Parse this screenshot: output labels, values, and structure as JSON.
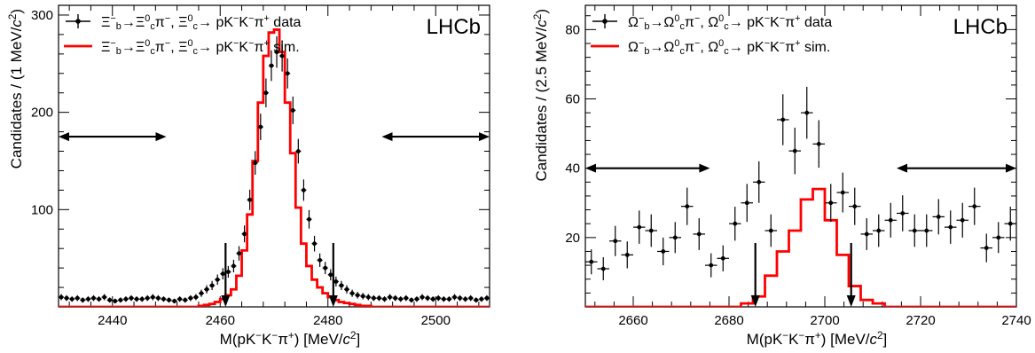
{
  "chart_data": [
    {
      "type": "histogram",
      "experiment_label": "LHCb",
      "xlabel": "M(pK⁻K⁻π⁺) [MeV/c²]",
      "ylabel": "Candidates / (1 MeV/c²)",
      "xlim": [
        2430,
        2510
      ],
      "ylim": [
        0,
        310
      ],
      "xticks": [
        2440,
        2460,
        2480,
        2500
      ],
      "yticks": [
        100,
        200,
        300
      ],
      "grid": false,
      "legend_position": "top-left",
      "legend": [
        {
          "series": "data",
          "text": "Ξ⁻_b→Ξ⁰_cπ⁻, Ξ⁰_c→ pK⁻K⁻π⁺ data"
        },
        {
          "series": "sim",
          "text": "Ξ⁻_b→Ξ⁰_cπ⁻, Ξ⁰_c→ pK⁻K⁻π⁺ sim."
        }
      ],
      "signal_window_arrows": [
        2461,
        2481
      ],
      "sideband_arrows": [
        [
          2430,
          2450
        ],
        [
          2490,
          2510
        ]
      ],
      "sideband_arrow_y": 175,
      "series": [
        {
          "name": "data",
          "color": "#000000",
          "style": "points_with_error_bars",
          "x": [
            2430.5,
            2431.5,
            2432.5,
            2433.5,
            2434.5,
            2435.5,
            2436.5,
            2437.5,
            2438.5,
            2439.5,
            2440.5,
            2441.5,
            2442.5,
            2443.5,
            2444.5,
            2445.5,
            2446.5,
            2447.5,
            2448.5,
            2449.5,
            2450.5,
            2451.5,
            2452.5,
            2453.5,
            2454.5,
            2455.5,
            2456.5,
            2457.5,
            2458.5,
            2459.5,
            2460.5,
            2461.5,
            2462.5,
            2463.5,
            2464.5,
            2465.5,
            2466.5,
            2467.5,
            2468.5,
            2469.5,
            2470.5,
            2471.5,
            2472.5,
            2473.5,
            2474.5,
            2475.5,
            2476.5,
            2477.5,
            2478.5,
            2479.5,
            2480.5,
            2481.5,
            2482.5,
            2483.5,
            2484.5,
            2485.5,
            2486.5,
            2487.5,
            2488.5,
            2489.5,
            2490.5,
            2491.5,
            2492.5,
            2493.5,
            2494.5,
            2495.5,
            2496.5,
            2497.5,
            2498.5,
            2499.5,
            2500.5,
            2501.5,
            2502.5,
            2503.5,
            2504.5,
            2505.5,
            2506.5,
            2507.5,
            2508.5,
            2509.5
          ],
          "y": [
            10,
            9,
            8,
            9,
            7,
            8,
            9,
            8,
            10,
            7,
            6,
            7,
            8,
            9,
            8,
            8,
            9,
            10,
            9,
            8,
            7,
            6,
            8,
            7,
            9,
            10,
            14,
            18,
            22,
            28,
            34,
            36,
            42,
            55,
            75,
            110,
            148,
            185,
            220,
            248,
            262,
            258,
            240,
            202,
            160,
            120,
            90,
            65,
            48,
            40,
            33,
            26,
            22,
            18,
            14,
            12,
            11,
            10,
            9,
            9,
            8,
            10,
            9,
            8,
            9,
            7,
            8,
            10,
            9,
            8,
            9,
            8,
            8,
            10,
            9,
            8,
            9,
            7,
            8,
            9
          ]
        },
        {
          "name": "sim",
          "color": "#ff0000",
          "style": "step",
          "x_edges": [
            2430,
            2431,
            2432,
            2433,
            2434,
            2435,
            2436,
            2437,
            2438,
            2439,
            2440,
            2441,
            2442,
            2443,
            2444,
            2445,
            2446,
            2447,
            2448,
            2449,
            2450,
            2451,
            2452,
            2453,
            2454,
            2455,
            2456,
            2457,
            2458,
            2459,
            2460,
            2461,
            2462,
            2463,
            2464,
            2465,
            2466,
            2467,
            2468,
            2469,
            2470,
            2471,
            2472,
            2473,
            2474,
            2475,
            2476,
            2477,
            2478,
            2479,
            2480,
            2481,
            2482,
            2483,
            2484,
            2485,
            2486,
            2487,
            2488,
            2489,
            2490,
            2491,
            2492,
            2493,
            2494,
            2495,
            2496,
            2497,
            2498,
            2499,
            2500,
            2501,
            2502,
            2503,
            2504,
            2505,
            2506,
            2507,
            2508,
            2509,
            2510
          ],
          "y": [
            0,
            0,
            0,
            0,
            0,
            0,
            0,
            0,
            0,
            0,
            0,
            0,
            0,
            0,
            0,
            0,
            0,
            0,
            0,
            0,
            0,
            0,
            0,
            0,
            0,
            0,
            1,
            2,
            3,
            5,
            8,
            12,
            18,
            32,
            58,
            95,
            150,
            210,
            258,
            282,
            285,
            262,
            210,
            158,
            102,
            65,
            42,
            28,
            20,
            14,
            10,
            7,
            5,
            4,
            3,
            2,
            1,
            1,
            0,
            0,
            0,
            0,
            0,
            0,
            0,
            0,
            0,
            0,
            0,
            0,
            0,
            0,
            0,
            0,
            0,
            0,
            0,
            0,
            0,
            0
          ]
        }
      ]
    },
    {
      "type": "histogram",
      "experiment_label": "LHCb",
      "xlabel": "M(pK⁻K⁻π⁺) [MeV/c²]",
      "ylabel": "Candidates / (2.5 MeV/c²)",
      "xlim": [
        2650,
        2740
      ],
      "ylim": [
        0,
        87
      ],
      "xticks": [
        2660,
        2680,
        2700,
        2720,
        2740
      ],
      "yticks": [
        20,
        40,
        60,
        80
      ],
      "grid": false,
      "legend_position": "top-left",
      "legend": [
        {
          "series": "data",
          "text": "Ω⁻_b→Ω⁰_cπ⁻, Ω⁰_c→ pK⁻K⁻π⁺ data"
        },
        {
          "series": "sim",
          "text": "Ω⁻_b→Ω⁰_cπ⁻, Ω⁰_c→ pK⁻K⁻π⁺ sim."
        }
      ],
      "signal_window_arrows": [
        2685.5,
        2705.5
      ],
      "sideband_arrows": [
        [
          2650,
          2676
        ],
        [
          2715,
          2740
        ]
      ],
      "sideband_arrow_y": 40,
      "series": [
        {
          "name": "data",
          "color": "#000000",
          "style": "points_with_error_bars",
          "x": [
            2651.25,
            2653.75,
            2656.25,
            2658.75,
            2661.25,
            2663.75,
            2666.25,
            2668.75,
            2671.25,
            2673.75,
            2676.25,
            2678.75,
            2681.25,
            2683.75,
            2686.25,
            2688.75,
            2691.25,
            2693.75,
            2696.25,
            2698.75,
            2701.25,
            2703.75,
            2706.25,
            2708.75,
            2711.25,
            2713.75,
            2716.25,
            2718.75,
            2721.25,
            2723.75,
            2726.25,
            2728.75,
            2731.25,
            2733.75,
            2736.25,
            2738.75
          ],
          "y": [
            13,
            11,
            19,
            15,
            23,
            22,
            16,
            20,
            29,
            21,
            12,
            14,
            24,
            30,
            36,
            22,
            54,
            45,
            56,
            47,
            30,
            33,
            29,
            21,
            22,
            25,
            27,
            22,
            22,
            26,
            23,
            25,
            29,
            17,
            20,
            24
          ]
        },
        {
          "name": "sim",
          "color": "#ff0000",
          "style": "step",
          "x_edges": [
            2650,
            2652.5,
            2655,
            2657.5,
            2660,
            2662.5,
            2665,
            2667.5,
            2670,
            2672.5,
            2675,
            2677.5,
            2680,
            2682.5,
            2685,
            2687.5,
            2690,
            2692.5,
            2695,
            2697.5,
            2700,
            2702.5,
            2705,
            2707.5,
            2710,
            2712.5,
            2715,
            2717.5,
            2720,
            2722.5,
            2725,
            2727.5,
            2730,
            2732.5,
            2735,
            2737.5,
            2740
          ],
          "y": [
            0,
            0,
            0,
            0,
            0,
            0,
            0,
            0,
            0,
            0,
            0,
            0,
            0,
            1,
            3,
            9,
            16,
            22,
            31,
            34,
            25,
            15,
            6,
            2,
            1,
            0,
            0,
            0,
            0,
            0,
            0,
            0,
            0,
            0,
            0,
            0
          ]
        }
      ]
    }
  ]
}
